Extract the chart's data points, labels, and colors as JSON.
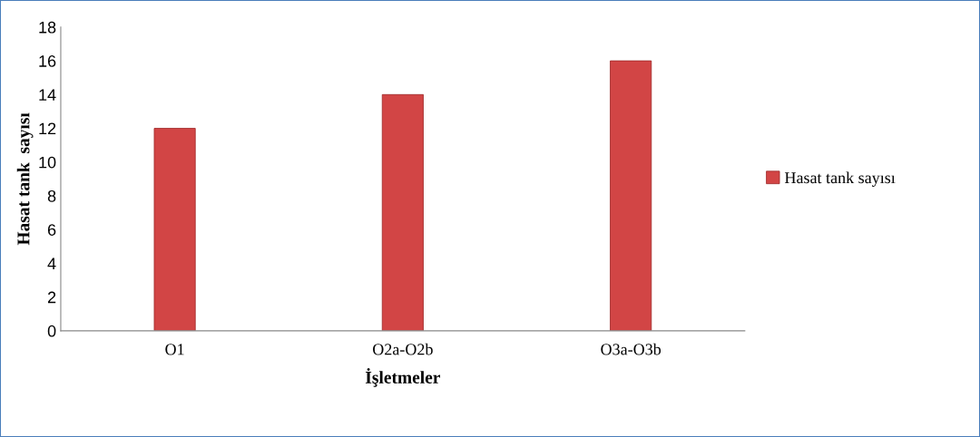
{
  "chart_data": {
    "type": "bar",
    "xlabel": "İşletmeler",
    "ylabel": "Hasat tank  sayısı",
    "categories": [
      "O1",
      "O2a-O2b",
      "O3a-O3b"
    ],
    "series": [
      {
        "name": "Hasat tank sayısı",
        "color": "#d24545",
        "values": [
          12,
          14,
          16
        ]
      }
    ],
    "ylim": [
      0,
      18
    ],
    "yticks": [
      0,
      2,
      4,
      6,
      8,
      10,
      12,
      14,
      16,
      18
    ],
    "grid": false,
    "legend": "right"
  }
}
